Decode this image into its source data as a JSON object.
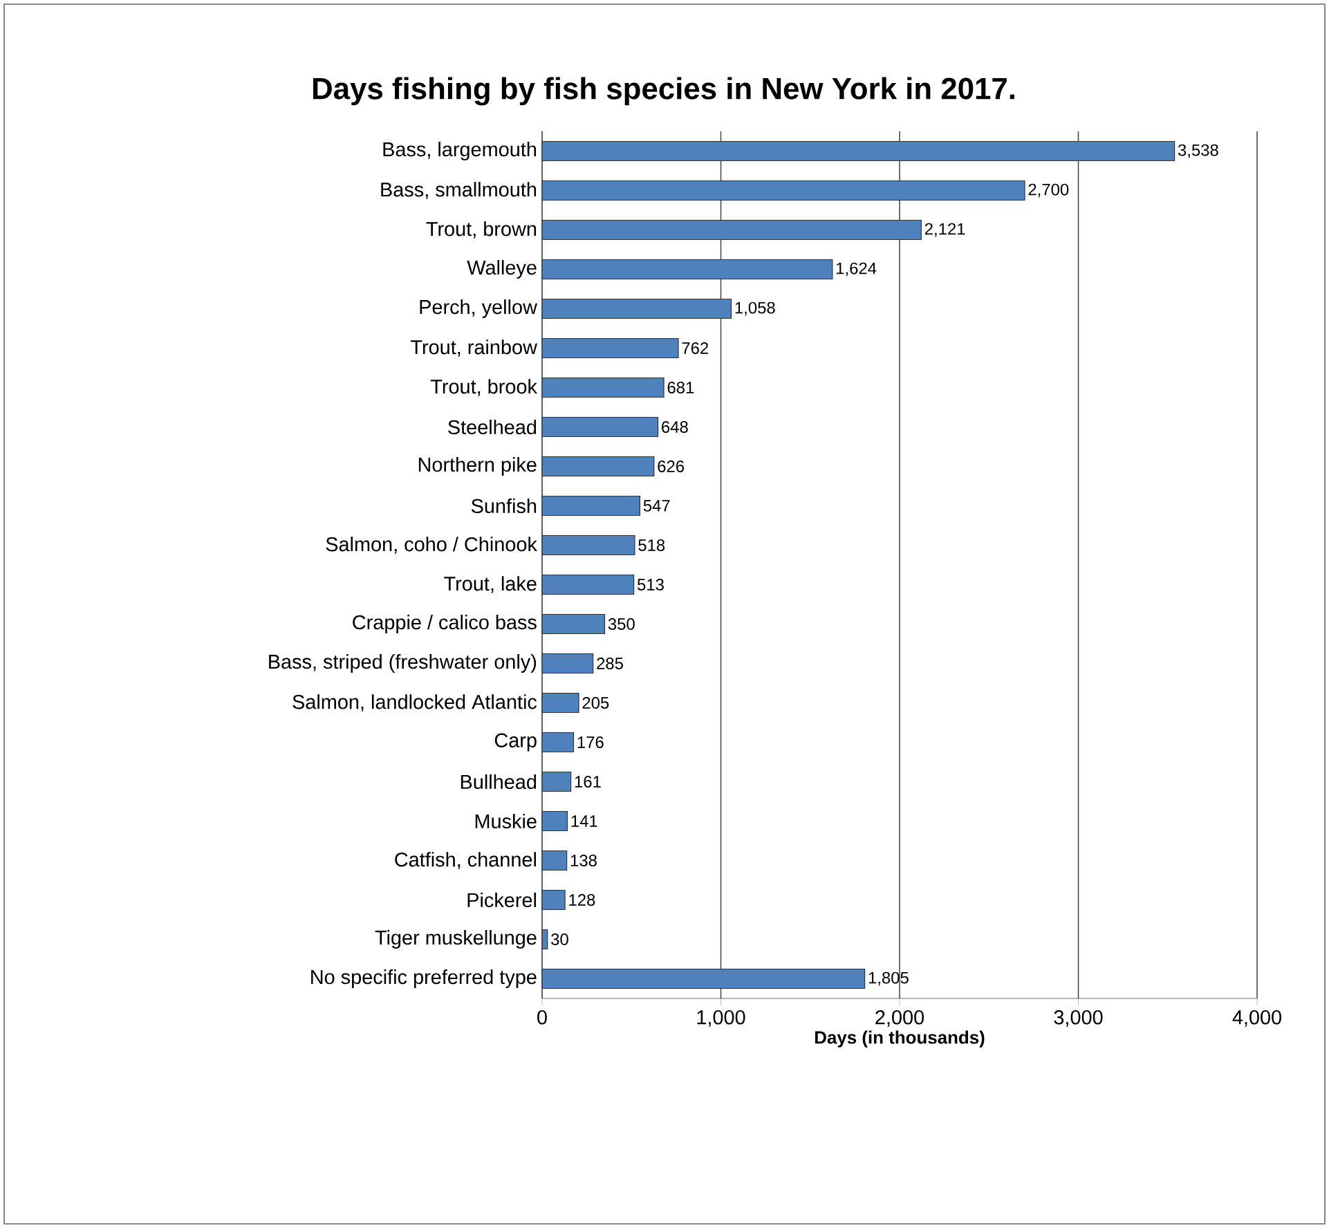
{
  "chart_data": {
    "type": "bar",
    "orientation": "horizontal",
    "title": "Days fishing by fish species in New York in 2017.",
    "xlabel": "Days (in thousands)",
    "categories": [
      "Bass, largemouth",
      "Bass, smallmouth",
      "Trout, brown",
      "Walleye",
      "Perch, yellow",
      "Trout, rainbow",
      "Trout, brook",
      "Steelhead",
      "Northern pike",
      "Sunfish",
      "Salmon, coho / Chinook",
      "Trout, lake",
      "Crappie / calico bass",
      "Bass, striped (freshwater only)",
      "Salmon, landlocked Atlantic",
      "Carp",
      "Bullhead",
      "Muskie",
      "Catfish, channel",
      "Pickerel",
      "Tiger muskellunge",
      "No specific preferred type"
    ],
    "values": [
      3538,
      2700,
      2121,
      1624,
      1058,
      762,
      681,
      648,
      626,
      547,
      518,
      513,
      350,
      285,
      205,
      176,
      161,
      141,
      138,
      128,
      30,
      1805
    ],
    "value_labels": [
      "3,538",
      "2,700",
      "2,121",
      "1,624",
      "1,058",
      "762",
      "681",
      "648",
      "626",
      "547",
      "518",
      "513",
      "350",
      "285",
      "205",
      "176",
      "161",
      "141",
      "138",
      "128",
      "30",
      "1,805"
    ],
    "color": "#4f81bd",
    "xlim": [
      0,
      4000
    ],
    "xticks": [
      0,
      {
        "value": 1000,
        "label": "1,000"
      },
      {
        "value": 2000,
        "label": "2,000"
      },
      {
        "value": 3000,
        "label": "3,000"
      },
      {
        "value": 4000,
        "label": "4,000"
      }
    ],
    "grid": "x"
  }
}
